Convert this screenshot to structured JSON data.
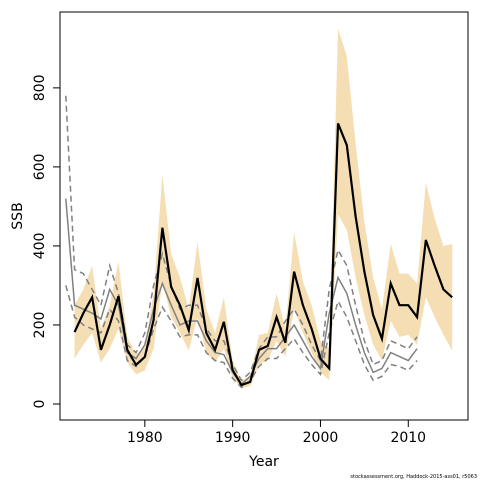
{
  "chart_data": {
    "type": "line",
    "xlabel": "Year",
    "ylabel": "SSB",
    "footnote": "stockassessment.org, Haddock-2015-ass01, r5063",
    "xlim": [
      1970.34,
      2016.8
    ],
    "ylim": [
      -40.5,
      992
    ],
    "xticks": [
      1980,
      1990,
      2000,
      2010
    ],
    "yticks": [
      0,
      200,
      400,
      600,
      800
    ],
    "band_color": "#f5deb3",
    "x": [
      1972,
      1973,
      1974,
      1975,
      1976,
      1977,
      1978,
      1979,
      1980,
      1981,
      1982,
      1983,
      1984,
      1985,
      1986,
      1987,
      1988,
      1989,
      1990,
      1991,
      1992,
      1993,
      1994,
      1995,
      1996,
      1997,
      1998,
      1999,
      2000,
      2001,
      2002,
      2003,
      2004,
      2005,
      2006,
      2007,
      2008,
      2009,
      2010,
      2011,
      2012,
      2013,
      2014,
      2015
    ],
    "ssb": {
      "color": "#000000",
      "values": [
        182,
        230,
        270,
        137,
        200,
        273,
        137,
        99,
        119,
        213,
        446,
        296,
        250,
        187,
        319,
        180,
        137,
        208,
        86,
        48,
        56,
        137,
        147,
        220,
        155,
        335,
        250,
        190,
        115,
        90,
        710,
        655,
        475,
        335,
        225,
        165,
        305,
        250,
        250,
        220,
        415,
        350,
        290,
        270
      ]
    },
    "ssb_upper": [
      250,
      290,
      350,
      190,
      250,
      360,
      170,
      125,
      145,
      280,
      580,
      380,
      320,
      240,
      410,
      240,
      180,
      270,
      110,
      60,
      70,
      175,
      180,
      280,
      190,
      435,
      310,
      250,
      160,
      140,
      950,
      880,
      660,
      460,
      320,
      240,
      405,
      330,
      330,
      305,
      560,
      470,
      400,
      405
    ],
    "ssb_lower": [
      115,
      150,
      180,
      105,
      140,
      190,
      105,
      75,
      85,
      140,
      310,
      220,
      180,
      135,
      220,
      130,
      105,
      140,
      65,
      40,
      45,
      100,
      110,
      160,
      120,
      240,
      180,
      130,
      80,
      60,
      480,
      440,
      320,
      225,
      150,
      110,
      210,
      170,
      175,
      150,
      270,
      220,
      175,
      135
    ],
    "x_previous": [
      1971,
      1972,
      1973,
      1974,
      1975,
      1976,
      1977,
      1978,
      1979,
      1980,
      1981,
      1982,
      1983,
      1984,
      1985,
      1986,
      1987,
      1988,
      1989,
      1990,
      1991,
      1992,
      1993,
      1994,
      1995,
      1996,
      1997,
      1998,
      1999,
      2000,
      2001,
      2002,
      2003,
      2004,
      2005,
      2006,
      2007,
      2008,
      2009,
      2010,
      2011
    ],
    "previous": {
      "color": "#808080",
      "values": [
        520,
        250,
        240,
        230,
        215,
        290,
        250,
        130,
        115,
        150,
        240,
        305,
        250,
        200,
        210,
        210,
        160,
        130,
        125,
        80,
        50,
        70,
        115,
        140,
        140,
        170,
        200,
        160,
        120,
        90,
        230,
        320,
        280,
        200,
        130,
        80,
        90,
        130,
        120,
        110,
        140
      ]
    },
    "previous_upper": {
      "color": "#808080",
      "dashed": true,
      "values": [
        780,
        340,
        330,
        290,
        250,
        350,
        280,
        150,
        130,
        180,
        300,
        380,
        300,
        240,
        250,
        250,
        190,
        160,
        160,
        100,
        60,
        80,
        140,
        170,
        170,
        210,
        240,
        200,
        150,
        110,
        290,
        390,
        350,
        250,
        160,
        100,
        110,
        160,
        150,
        140,
        170
      ]
    },
    "previous_lower": {
      "color": "#808080",
      "dashed": true,
      "values": [
        300,
        220,
        200,
        190,
        180,
        240,
        210,
        110,
        95,
        120,
        190,
        245,
        210,
        170,
        175,
        175,
        130,
        110,
        105,
        65,
        42,
        58,
        95,
        115,
        115,
        140,
        165,
        130,
        100,
        75,
        180,
        260,
        220,
        160,
        100,
        60,
        70,
        100,
        95,
        85,
        110
      ]
    }
  }
}
